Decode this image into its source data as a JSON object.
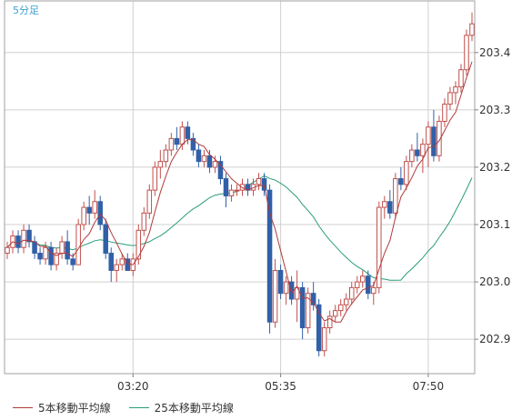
{
  "timeframe_label": "5分足",
  "chart_data": {
    "type": "candlestick",
    "ylim": [
      202.84,
      203.49
    ],
    "yticks": [
      203.4,
      203.3,
      203.2,
      203.1,
      203.0,
      202.9
    ],
    "xticks": [
      {
        "index": 23,
        "label": "03:20"
      },
      {
        "index": 50,
        "label": "05:35"
      },
      {
        "index": 77,
        "label": "07:50"
      }
    ],
    "grid": true,
    "legend_placement": "bottom-left",
    "colors": {
      "up": "#c0504d",
      "down": "#3060a8",
      "ma5": "#b03a3a",
      "ma25": "#2a9d78",
      "grid": "#d0d0d0"
    },
    "candles": [
      [
        203.05,
        203.07,
        203.04,
        203.06
      ],
      [
        203.06,
        203.09,
        203.05,
        203.08
      ],
      [
        203.08,
        203.09,
        203.05,
        203.06
      ],
      [
        203.06,
        203.1,
        203.05,
        203.09
      ],
      [
        203.09,
        203.1,
        203.06,
        203.07
      ],
      [
        203.07,
        203.08,
        203.04,
        203.05
      ],
      [
        203.05,
        203.06,
        203.03,
        203.04
      ],
      [
        203.04,
        203.07,
        203.03,
        203.06
      ],
      [
        203.06,
        203.07,
        203.02,
        203.03
      ],
      [
        203.03,
        203.06,
        203.02,
        203.05
      ],
      [
        203.05,
        203.08,
        203.04,
        203.07
      ],
      [
        203.07,
        203.09,
        203.03,
        203.04
      ],
      [
        203.04,
        203.05,
        203.02,
        203.03
      ],
      [
        203.03,
        203.11,
        203.03,
        203.1
      ],
      [
        203.1,
        203.14,
        203.09,
        203.13
      ],
      [
        203.13,
        203.15,
        203.1,
        203.12
      ],
      [
        203.12,
        203.16,
        203.11,
        203.14
      ],
      [
        203.14,
        203.15,
        203.09,
        203.1
      ],
      [
        203.1,
        203.11,
        203.04,
        203.05
      ],
      [
        203.05,
        203.06,
        203.0,
        203.02
      ],
      [
        203.02,
        203.04,
        203.0,
        203.03
      ],
      [
        203.03,
        203.05,
        203.02,
        203.04
      ],
      [
        203.04,
        203.05,
        203.02,
        203.02
      ],
      [
        203.02,
        203.05,
        203.01,
        203.04
      ],
      [
        203.04,
        203.1,
        203.03,
        203.09
      ],
      [
        203.09,
        203.13,
        203.08,
        203.12
      ],
      [
        203.12,
        203.17,
        203.11,
        203.16
      ],
      [
        203.16,
        203.21,
        203.15,
        203.2
      ],
      [
        203.2,
        203.23,
        203.18,
        203.21
      ],
      [
        203.21,
        203.24,
        203.2,
        203.23
      ],
      [
        203.23,
        203.26,
        203.22,
        203.25
      ],
      [
        203.25,
        203.27,
        203.23,
        203.24
      ],
      [
        203.24,
        203.28,
        203.23,
        203.27
      ],
      [
        203.27,
        203.28,
        203.24,
        203.25
      ],
      [
        203.25,
        203.26,
        203.22,
        203.23
      ],
      [
        203.23,
        203.24,
        203.2,
        203.21
      ],
      [
        203.21,
        203.23,
        203.2,
        203.22
      ],
      [
        203.22,
        203.23,
        203.19,
        203.2
      ],
      [
        203.2,
        203.22,
        203.19,
        203.21
      ],
      [
        203.21,
        203.22,
        203.17,
        203.18
      ],
      [
        203.18,
        203.19,
        203.13,
        203.15
      ],
      [
        203.15,
        203.17,
        203.14,
        203.16
      ],
      [
        203.16,
        203.17,
        203.15,
        203.16
      ],
      [
        203.16,
        203.18,
        203.15,
        203.17
      ],
      [
        203.17,
        203.18,
        203.15,
        203.16
      ],
      [
        203.16,
        203.18,
        203.15,
        203.17
      ],
      [
        203.17,
        203.19,
        203.16,
        203.18
      ],
      [
        203.18,
        203.19,
        203.15,
        203.16
      ],
      [
        203.16,
        203.17,
        202.91,
        202.93
      ],
      [
        202.93,
        203.04,
        202.92,
        203.02
      ],
      [
        203.02,
        203.03,
        202.97,
        202.98
      ],
      [
        202.98,
        203.01,
        202.96,
        203.0
      ],
      [
        203.0,
        203.01,
        202.96,
        202.97
      ],
      [
        202.97,
        203.02,
        202.93,
        202.99
      ],
      [
        202.99,
        203.0,
        202.9,
        202.92
      ],
      [
        202.92,
        202.99,
        202.91,
        202.98
      ],
      [
        202.98,
        203.0,
        202.95,
        202.96
      ],
      [
        202.96,
        202.97,
        202.87,
        202.88
      ],
      [
        202.88,
        202.93,
        202.87,
        202.92
      ],
      [
        202.92,
        202.95,
        202.91,
        202.94
      ],
      [
        202.94,
        202.96,
        202.93,
        202.95
      ],
      [
        202.95,
        202.97,
        202.94,
        202.96
      ],
      [
        202.96,
        202.98,
        202.95,
        202.97
      ],
      [
        202.97,
        203.0,
        202.96,
        202.99
      ],
      [
        202.99,
        203.01,
        202.98,
        203.0
      ],
      [
        203.0,
        203.02,
        202.99,
        203.01
      ],
      [
        203.01,
        203.02,
        202.97,
        202.98
      ],
      [
        202.98,
        203.0,
        202.96,
        202.99
      ],
      [
        202.99,
        203.14,
        202.98,
        203.13
      ],
      [
        203.13,
        203.15,
        203.11,
        203.14
      ],
      [
        203.14,
        203.16,
        203.11,
        203.12
      ],
      [
        203.12,
        203.19,
        203.11,
        203.18
      ],
      [
        203.18,
        203.2,
        203.16,
        203.17
      ],
      [
        203.17,
        203.22,
        203.16,
        203.21
      ],
      [
        203.21,
        203.24,
        203.2,
        203.23
      ],
      [
        203.23,
        203.26,
        203.21,
        203.22
      ],
      [
        203.22,
        203.25,
        203.19,
        203.24
      ],
      [
        203.24,
        203.28,
        203.2,
        203.27
      ],
      [
        203.27,
        203.3,
        203.21,
        203.22
      ],
      [
        203.22,
        203.29,
        203.21,
        203.28
      ],
      [
        203.28,
        203.32,
        203.27,
        203.31
      ],
      [
        203.31,
        203.34,
        203.3,
        203.33
      ],
      [
        203.33,
        203.35,
        203.31,
        203.34
      ],
      [
        203.34,
        203.38,
        203.33,
        203.37
      ],
      [
        203.37,
        203.44,
        203.36,
        203.43
      ],
      [
        203.43,
        203.47,
        203.42,
        203.45
      ]
    ]
  },
  "legend": {
    "ma5_label": "5本移動平均線",
    "ma25_label": "25本移動平均線"
  }
}
